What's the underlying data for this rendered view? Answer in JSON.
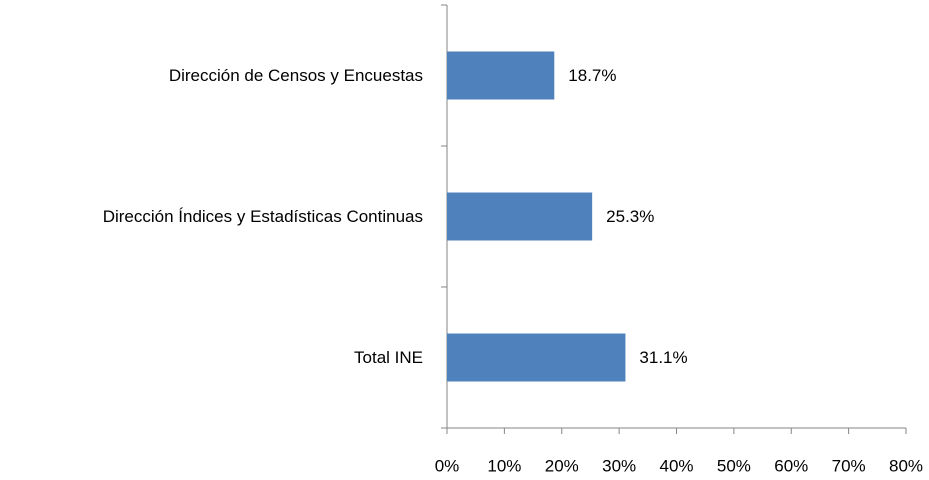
{
  "chart_data": {
    "type": "bar",
    "orientation": "horizontal",
    "categories": [
      "Dirección de Censos y Encuestas",
      "Dirección Índices y Estadísticas Continuas",
      "Total INE"
    ],
    "values": [
      18.7,
      25.3,
      31.1
    ],
    "value_labels": [
      "18.7%",
      "25.3%",
      "31.1%"
    ],
    "color": "#4f81bd",
    "xlim": [
      0,
      80
    ],
    "xticks": [
      {
        "value": 0,
        "label": "0%"
      },
      {
        "value": 10,
        "label": "10%"
      },
      {
        "value": 20,
        "label": "20%"
      },
      {
        "value": 30,
        "label": "30%"
      },
      {
        "value": 40,
        "label": "40%"
      },
      {
        "value": 50,
        "label": "50%"
      },
      {
        "value": 60,
        "label": "60%"
      },
      {
        "value": 70,
        "label": "70%"
      },
      {
        "value": 80,
        "label": "80%"
      }
    ],
    "grid": false
  }
}
